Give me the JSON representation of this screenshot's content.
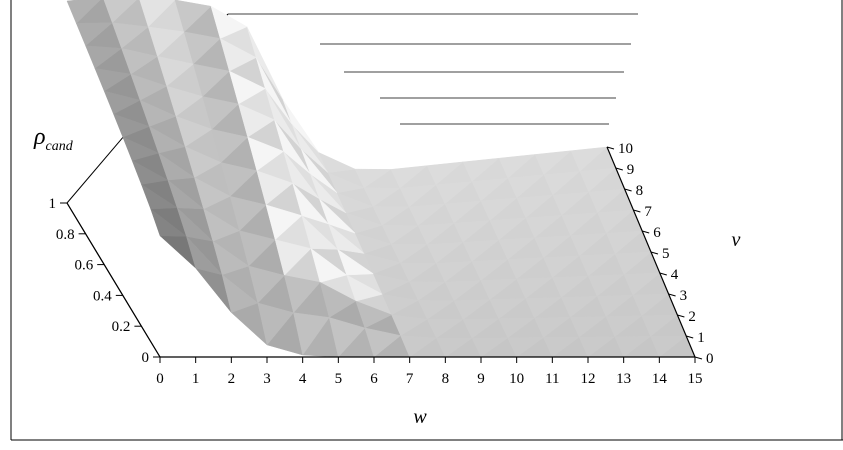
{
  "chart_data": {
    "type": "surface",
    "title": "",
    "xlabel": "w",
    "ylabel": "v",
    "zlabel_main": "ρ",
    "zlabel_sub": "cand",
    "x_ticks": [
      "0",
      "1",
      "2",
      "3",
      "4",
      "5",
      "6",
      "7",
      "8",
      "9",
      "10",
      "11",
      "12",
      "13",
      "14",
      "15"
    ],
    "y_ticks": [
      "0",
      "1",
      "2",
      "3",
      "4",
      "5",
      "6",
      "7",
      "8",
      "9",
      "10"
    ],
    "z_ticks": [
      "0",
      "0.2",
      "0.4",
      "0.6",
      "0.8",
      "1"
    ],
    "xlim": [
      0,
      15
    ],
    "ylim": [
      0,
      10
    ],
    "zlim": [
      0,
      1
    ],
    "grid": true,
    "legend": "none",
    "w": [
      0,
      1,
      2,
      3,
      4,
      5,
      6,
      7,
      8,
      9,
      10,
      11,
      12,
      13,
      14,
      15
    ],
    "v": [
      0,
      1,
      2,
      3,
      4,
      5,
      6,
      7,
      8,
      9,
      10
    ],
    "z_profile_w": [
      0.6,
      0.44,
      0.22,
      0.06,
      0.01,
      0,
      0,
      0,
      0,
      0,
      0,
      0,
      0,
      0,
      0,
      0
    ],
    "z_back_v10": [
      1.0,
      1.0,
      0.98,
      0.95,
      0.9,
      0.78,
      0.4,
      0.12,
      0.02,
      0,
      0,
      0,
      0,
      0,
      0,
      0
    ],
    "colors": {
      "surface_dark": "#7a7a7a",
      "surface_light": "#e2e2e2",
      "axis": "#000000"
    }
  }
}
